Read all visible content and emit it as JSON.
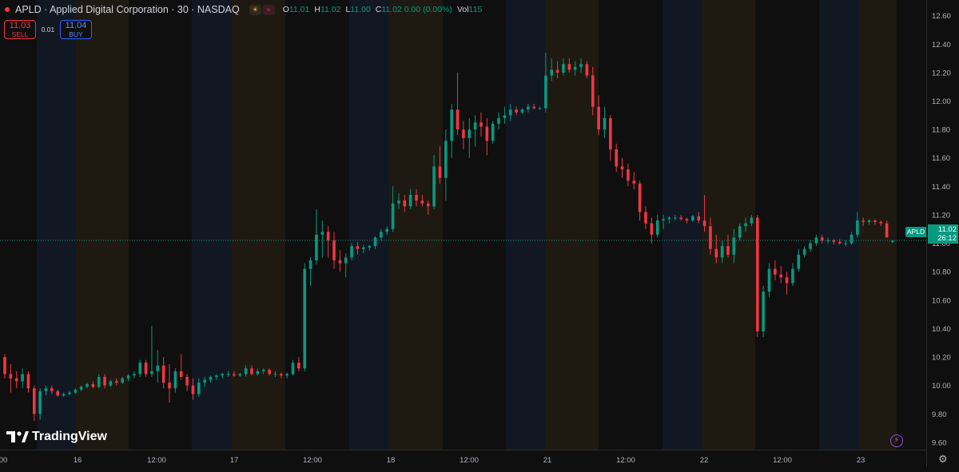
{
  "symbol": "APLD",
  "title": "APLD · Applied Digital Corporation · 30 · NASDAQ",
  "legend": {
    "o_label": "O",
    "o_value": "11.01",
    "h_label": "H",
    "h_value": "11.02",
    "l_label": "L",
    "l_value": "11.00",
    "c_label": "C",
    "c_value": "11.02 0.00 (0.00%)",
    "vol_label": "Vol",
    "vol_value": "115",
    "badge_1": "☀",
    "badge_2": "≈"
  },
  "trade": {
    "sell_price": "11.03",
    "sell_label": "SELL",
    "spread": "0.01",
    "buy_price": "11.04",
    "buy_label": "BUY"
  },
  "current_price": {
    "symbol": "APLD",
    "price": "11.02",
    "countdown": "26:12"
  },
  "brand": "TradingView",
  "colors": {
    "up": "#089981",
    "down": "#f23645",
    "premarket": "#152033",
    "postmarket": "#2b2416"
  },
  "chart_data": {
    "type": "candlestick",
    "y_ticks": [
      "12.60",
      "12.40",
      "12.20",
      "12.00",
      "11.80",
      "11.60",
      "11.40",
      "11.20",
      "11.00",
      "10.80",
      "10.60",
      "10.40",
      "10.20",
      "10.00",
      "9.80",
      "9.60"
    ],
    "ylim": [
      9.56,
      12.66
    ],
    "x_ticks": [
      "00",
      "16",
      "12:00",
      "17",
      "12:00",
      "18",
      "12:00",
      "21",
      "12:00",
      "22",
      "12:00",
      "23"
    ],
    "last_price": 11.02,
    "ohlc": [
      [
        10.2,
        10.22,
        10.05,
        10.08
      ],
      [
        10.08,
        10.15,
        9.95,
        10.05
      ],
      [
        10.05,
        10.1,
        9.98,
        10.03
      ],
      [
        10.03,
        10.12,
        9.98,
        10.08
      ],
      [
        10.08,
        10.1,
        9.95,
        9.98
      ],
      [
        9.98,
        10.0,
        9.75,
        9.8
      ],
      [
        9.8,
        9.98,
        9.76,
        9.96
      ],
      [
        9.96,
        10.0,
        9.93,
        9.98
      ],
      [
        9.98,
        10.0,
        9.94,
        9.96
      ],
      [
        9.96,
        9.97,
        9.92,
        9.93
      ],
      [
        9.93,
        9.95,
        9.92,
        9.94
      ],
      [
        9.94,
        9.96,
        9.93,
        9.95
      ],
      [
        9.95,
        9.98,
        9.94,
        9.97
      ],
      [
        9.97,
        10.0,
        9.96,
        9.99
      ],
      [
        9.99,
        10.02,
        9.98,
        10.01
      ],
      [
        10.01,
        10.03,
        9.98,
        9.99
      ],
      [
        9.99,
        10.08,
        9.98,
        10.06
      ],
      [
        10.06,
        10.08,
        9.98,
        10.0
      ],
      [
        10.0,
        10.04,
        9.99,
        10.03
      ],
      [
        10.03,
        10.05,
        10.0,
        10.02
      ],
      [
        10.02,
        10.06,
        10.01,
        10.05
      ],
      [
        10.05,
        10.08,
        10.03,
        10.07
      ],
      [
        10.07,
        10.1,
        10.05,
        10.08
      ],
      [
        10.08,
        10.18,
        10.06,
        10.16
      ],
      [
        10.16,
        10.18,
        10.06,
        10.08
      ],
      [
        10.08,
        10.42,
        10.06,
        10.1
      ],
      [
        10.1,
        10.25,
        10.02,
        10.14
      ],
      [
        10.14,
        10.2,
        9.98,
        10.02
      ],
      [
        10.02,
        10.15,
        9.88,
        9.98
      ],
      [
        9.98,
        10.12,
        9.95,
        10.1
      ],
      [
        10.1,
        10.22,
        10.04,
        10.06
      ],
      [
        10.06,
        10.08,
        9.96,
        10.0
      ],
      [
        10.0,
        10.05,
        9.9,
        9.94
      ],
      [
        9.94,
        10.05,
        9.92,
        10.02
      ],
      [
        10.02,
        10.06,
        9.99,
        10.04
      ],
      [
        10.04,
        10.07,
        10.02,
        10.06
      ],
      [
        10.06,
        10.08,
        10.04,
        10.07
      ],
      [
        10.07,
        10.09,
        10.05,
        10.08
      ],
      [
        10.08,
        10.1,
        10.06,
        10.08
      ],
      [
        10.08,
        10.1,
        10.06,
        10.07
      ],
      [
        10.07,
        10.09,
        10.06,
        10.08
      ],
      [
        10.08,
        10.14,
        10.06,
        10.12
      ],
      [
        10.12,
        10.14,
        10.07,
        10.08
      ],
      [
        10.08,
        10.12,
        10.07,
        10.1
      ],
      [
        10.1,
        10.12,
        10.08,
        10.11
      ],
      [
        10.11,
        10.12,
        10.07,
        10.08
      ],
      [
        10.08,
        10.1,
        10.06,
        10.08
      ],
      [
        10.08,
        10.09,
        10.05,
        10.07
      ],
      [
        10.07,
        10.09,
        10.05,
        10.08
      ],
      [
        10.08,
        10.18,
        10.07,
        10.16
      ],
      [
        10.16,
        10.2,
        10.1,
        10.12
      ],
      [
        10.12,
        10.86,
        10.1,
        10.82
      ],
      [
        10.82,
        10.9,
        10.7,
        10.88
      ],
      [
        10.88,
        11.24,
        10.85,
        11.06
      ],
      [
        11.06,
        11.16,
        10.9,
        11.08
      ],
      [
        11.08,
        11.12,
        10.9,
        11.02
      ],
      [
        11.02,
        11.08,
        10.82,
        10.88
      ],
      [
        10.88,
        10.95,
        10.8,
        10.86
      ],
      [
        10.86,
        10.93,
        10.76,
        10.9
      ],
      [
        10.9,
        11.0,
        10.88,
        10.98
      ],
      [
        10.98,
        11.01,
        10.92,
        10.96
      ],
      [
        10.96,
        10.99,
        10.93,
        10.97
      ],
      [
        10.97,
        10.99,
        10.95,
        10.98
      ],
      [
        10.98,
        11.05,
        10.96,
        11.04
      ],
      [
        11.04,
        11.1,
        11.02,
        11.08
      ],
      [
        11.08,
        11.12,
        11.06,
        11.1
      ],
      [
        11.1,
        11.4,
        11.08,
        11.28
      ],
      [
        11.28,
        11.35,
        11.24,
        11.3
      ],
      [
        11.3,
        11.34,
        11.22,
        11.26
      ],
      [
        11.26,
        11.38,
        11.24,
        11.34
      ],
      [
        11.34,
        11.38,
        11.26,
        11.3
      ],
      [
        11.3,
        11.34,
        11.26,
        11.28
      ],
      [
        11.28,
        11.3,
        11.2,
        11.26
      ],
      [
        11.26,
        11.62,
        11.24,
        11.54
      ],
      [
        11.54,
        11.68,
        11.42,
        11.46
      ],
      [
        11.46,
        11.8,
        11.3,
        11.72
      ],
      [
        11.72,
        11.98,
        11.6,
        11.94
      ],
      [
        11.94,
        12.2,
        11.76,
        11.8
      ],
      [
        11.8,
        11.86,
        11.66,
        11.74
      ],
      [
        11.74,
        11.88,
        11.6,
        11.8
      ],
      [
        11.8,
        11.9,
        11.68,
        11.85
      ],
      [
        11.85,
        11.92,
        11.75,
        11.82
      ],
      [
        11.82,
        11.88,
        11.62,
        11.72
      ],
      [
        11.72,
        11.86,
        11.7,
        11.84
      ],
      [
        11.84,
        11.92,
        11.8,
        11.88
      ],
      [
        11.88,
        11.96,
        11.84,
        11.9
      ],
      [
        11.9,
        11.98,
        11.86,
        11.94
      ],
      [
        11.94,
        11.96,
        11.9,
        11.92
      ],
      [
        11.92,
        11.95,
        11.91,
        11.94
      ],
      [
        11.94,
        11.98,
        11.92,
        11.96
      ],
      [
        11.96,
        11.98,
        11.94,
        11.95
      ],
      [
        11.95,
        11.96,
        11.94,
        11.95
      ],
      [
        11.95,
        12.34,
        11.92,
        12.18
      ],
      [
        12.18,
        12.3,
        12.14,
        12.22
      ],
      [
        12.22,
        12.28,
        12.16,
        12.2
      ],
      [
        12.2,
        12.3,
        12.18,
        12.26
      ],
      [
        12.26,
        12.3,
        12.2,
        12.22
      ],
      [
        12.22,
        12.28,
        12.18,
        12.24
      ],
      [
        12.24,
        12.3,
        12.2,
        12.26
      ],
      [
        12.26,
        12.28,
        12.16,
        12.18
      ],
      [
        12.18,
        12.24,
        11.9,
        11.96
      ],
      [
        11.96,
        12.04,
        11.76,
        11.8
      ],
      [
        11.8,
        11.96,
        11.74,
        11.88
      ],
      [
        11.88,
        11.9,
        11.58,
        11.66
      ],
      [
        11.66,
        11.7,
        11.5,
        11.54
      ],
      [
        11.54,
        11.6,
        11.46,
        11.52
      ],
      [
        11.52,
        11.56,
        11.4,
        11.44
      ],
      [
        11.44,
        11.5,
        11.38,
        11.42
      ],
      [
        11.42,
        11.44,
        11.16,
        11.22
      ],
      [
        11.22,
        11.26,
        11.1,
        11.14
      ],
      [
        11.14,
        11.18,
        11.0,
        11.06
      ],
      [
        11.06,
        11.2,
        11.04,
        11.16
      ],
      [
        11.16,
        11.2,
        11.1,
        11.17
      ],
      [
        11.17,
        11.19,
        11.14,
        11.18
      ],
      [
        11.18,
        11.2,
        11.16,
        11.18
      ],
      [
        11.18,
        11.2,
        11.16,
        11.17
      ],
      [
        11.17,
        11.18,
        11.14,
        11.16
      ],
      [
        11.16,
        11.2,
        11.15,
        11.19
      ],
      [
        11.19,
        11.22,
        11.14,
        11.16
      ],
      [
        11.16,
        11.34,
        11.08,
        11.12
      ],
      [
        11.12,
        11.18,
        10.92,
        10.96
      ],
      [
        10.96,
        11.06,
        10.86,
        10.9
      ],
      [
        10.9,
        11.02,
        10.86,
        10.98
      ],
      [
        10.98,
        11.06,
        10.9,
        10.92
      ],
      [
        10.92,
        11.1,
        10.86,
        11.04
      ],
      [
        11.04,
        11.14,
        11.02,
        11.12
      ],
      [
        11.12,
        11.18,
        11.08,
        11.14
      ],
      [
        11.14,
        11.2,
        11.12,
        11.18
      ],
      [
        11.18,
        11.2,
        10.34,
        10.38
      ],
      [
        10.38,
        10.7,
        10.34,
        10.66
      ],
      [
        10.66,
        10.86,
        10.62,
        10.82
      ],
      [
        10.82,
        10.88,
        10.74,
        10.78
      ],
      [
        10.78,
        10.84,
        10.72,
        10.76
      ],
      [
        10.76,
        10.8,
        10.64,
        10.72
      ],
      [
        10.72,
        10.86,
        10.7,
        10.82
      ],
      [
        10.82,
        10.96,
        10.8,
        10.92
      ],
      [
        10.92,
        10.98,
        10.9,
        10.96
      ],
      [
        10.96,
        11.02,
        10.94,
        11.0
      ],
      [
        11.0,
        11.06,
        10.98,
        11.04
      ],
      [
        11.04,
        11.06,
        11.0,
        11.02
      ],
      [
        11.02,
        11.04,
        11.0,
        11.02
      ],
      [
        11.02,
        11.03,
        10.99,
        11.01
      ],
      [
        11.01,
        11.03,
        10.99,
        11.0
      ],
      [
        11.0,
        11.02,
        10.98,
        11.0
      ],
      [
        11.0,
        11.08,
        10.99,
        11.06
      ],
      [
        11.06,
        11.22,
        11.04,
        11.16
      ],
      [
        11.16,
        11.18,
        11.12,
        11.15
      ],
      [
        11.15,
        11.17,
        11.13,
        11.16
      ],
      [
        11.16,
        11.17,
        11.13,
        11.15
      ],
      [
        11.15,
        11.16,
        11.12,
        11.14
      ],
      [
        11.14,
        11.16,
        11.06,
        11.04
      ],
      [
        11.01,
        11.02,
        11.0,
        11.02
      ]
    ]
  }
}
